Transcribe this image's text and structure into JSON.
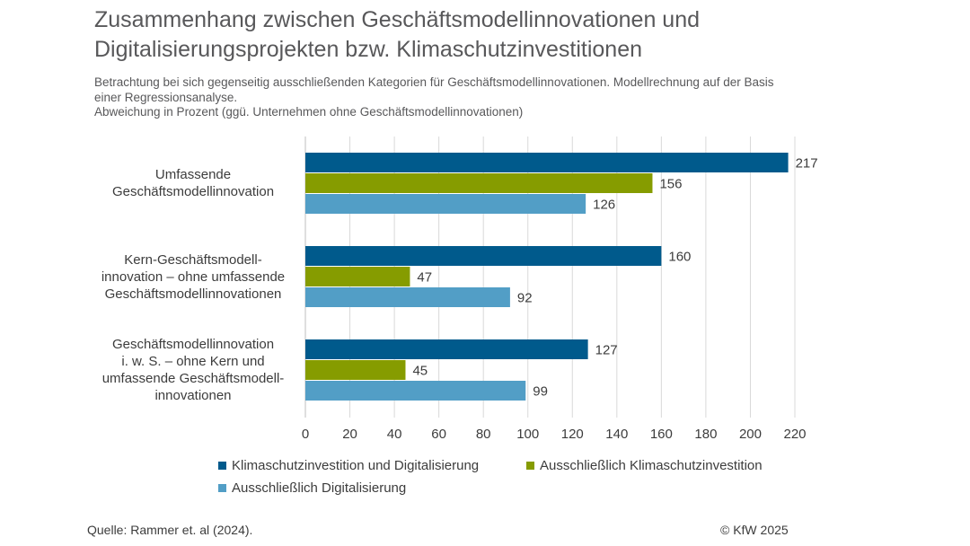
{
  "title_line1": "Zusammenhang zwischen Geschäftsmodellinnovationen und",
  "title_line2": "Digitalisierungsprojekten bzw. Klimaschutzinvestitionen",
  "subtitle_line1": "Betrachtung bei sich gegenseitig ausschließenden Kategorien für Geschäftsmodellinnovationen. Modellrechnung auf der Basis",
  "subtitle_line2": "einer Regressionsanalyse.",
  "subtitle_line3": "Abweichung in Prozent (ggü. Unternehmen ohne Geschäftsmodellinnovationen)",
  "footer": {
    "source": "Quelle: Rammer et. al (2024).",
    "copyright": "© KfW 2025"
  },
  "chart_data": {
    "type": "bar",
    "orientation": "horizontal",
    "categories": [
      [
        "Umfassende",
        "Geschäftsmodellinnovation"
      ],
      [
        "Kern-Geschäftsmodell-",
        "innovation – ohne umfassende",
        "Geschäftsmodellinnovationen"
      ],
      [
        "Geschäftsmodellinnovation",
        "i. w. S. – ohne Kern und",
        "umfassende Geschäftsmodell-",
        "innovationen"
      ]
    ],
    "series": [
      {
        "name": "Klimaschutzinvestition und Digitalisierung",
        "color": "#005a8c",
        "values": [
          217,
          160,
          127
        ]
      },
      {
        "name": "Ausschließlich Klimaschutzinvestition",
        "color": "#869c00",
        "values": [
          156,
          47,
          45
        ]
      },
      {
        "name": "Ausschließlich Digitalisierung",
        "color": "#529ec6",
        "values": [
          126,
          92,
          99
        ]
      }
    ],
    "xlim": [
      0,
      220
    ],
    "xticks": [
      0,
      20,
      40,
      60,
      80,
      100,
      120,
      140,
      160,
      180,
      200,
      220
    ],
    "grid": true,
    "legend_position": "bottom"
  }
}
